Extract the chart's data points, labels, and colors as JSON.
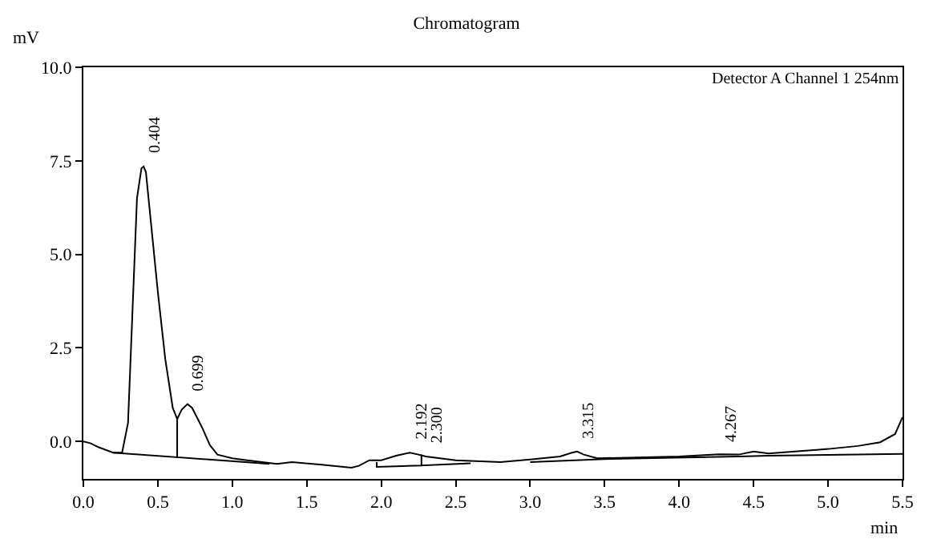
{
  "chart_data": {
    "type": "line",
    "title": "Chromatogram",
    "xlabel": "min",
    "ylabel": "mV",
    "xlim": [
      0,
      5.5
    ],
    "xticks": [
      {
        "value": 0,
        "label": "0.0"
      },
      0.5,
      {
        "value": 1,
        "label": "1.0"
      },
      1.5,
      {
        "value": 2,
        "label": "2.0"
      },
      2.5,
      {
        "value": 3,
        "label": "3.0"
      },
      3.5,
      {
        "value": 4,
        "label": "4.0"
      },
      4.5,
      {
        "value": 5,
        "label": "5.0"
      },
      5.5
    ],
    "ylim": [
      -1,
      10
    ],
    "yticks": [
      {
        "value": 0,
        "label": "0.0"
      },
      2.5,
      {
        "value": 5,
        "label": "5.0"
      },
      7.5,
      {
        "value": 10,
        "label": "10.0"
      }
    ],
    "marker": "none",
    "line_style": "solid",
    "series": [
      {
        "color": "#000000",
        "x": [
          0,
          0.05,
          0.1,
          0.2,
          0.26,
          0.3,
          0.33,
          0.36,
          0.39,
          0.404,
          0.42,
          0.45,
          0.5,
          0.55,
          0.6,
          0.63,
          0.66,
          0.699,
          0.73,
          0.8,
          0.85,
          0.9,
          1.0,
          1.1,
          1.3,
          1.4,
          1.6,
          1.8,
          1.85,
          1.92,
          2.0,
          2.1,
          2.192,
          2.25,
          2.3,
          2.5,
          2.8,
          3.0,
          3.2,
          3.28,
          3.315,
          3.36,
          3.45,
          4.0,
          4.267,
          4.4,
          4.5,
          4.6,
          5.0,
          5.2,
          5.35,
          5.45,
          5.5
        ],
        "values": [
          0.0,
          -0.05,
          -0.15,
          -0.3,
          -0.3,
          0.5,
          3.5,
          6.5,
          7.3,
          7.35,
          7.2,
          6.0,
          4.0,
          2.2,
          0.9,
          0.6,
          0.85,
          1.0,
          0.9,
          0.35,
          -0.1,
          -0.35,
          -0.45,
          -0.5,
          -0.6,
          -0.55,
          -0.62,
          -0.7,
          -0.65,
          -0.5,
          -0.5,
          -0.38,
          -0.3,
          -0.35,
          -0.4,
          -0.5,
          -0.55,
          -0.48,
          -0.4,
          -0.3,
          -0.27,
          -0.35,
          -0.45,
          -0.4,
          -0.34,
          -0.35,
          -0.27,
          -0.32,
          -0.2,
          -0.12,
          -0.02,
          0.2,
          0.65
        ]
      },
      {
        "color": "#000000",
        "x": [
          0.2,
          0.63,
          0.63,
          0.63,
          1.25,
          null,
          1.97,
          1.97,
          2.27,
          2.27,
          2.27,
          2.6,
          null,
          3.0,
          3.5,
          4.4,
          4.6,
          5.5
        ],
        "values": [
          -0.3,
          -0.42,
          0.6,
          -0.42,
          -0.6,
          null,
          -0.55,
          -0.68,
          -0.64,
          -0.35,
          -0.64,
          -0.58,
          null,
          -0.55,
          -0.47,
          -0.4,
          -0.38,
          -0.33
        ]
      }
    ],
    "annotations": [
      "Detector A Channel 1 254nm",
      {
        "text": "0.404",
        "x": 0.404,
        "y": 7.35
      },
      {
        "text": "0.699",
        "x": 0.699,
        "y": 1.0
      },
      {
        "text": "2.192",
        "x": 2.192,
        "y": -0.3
      },
      {
        "text": "2.300",
        "x": 2.3,
        "y": -0.4
      },
      {
        "text": "3.315",
        "x": 3.315,
        "y": -0.27
      },
      {
        "text": "4.267",
        "x": 4.267,
        "y": -0.34
      }
    ]
  }
}
